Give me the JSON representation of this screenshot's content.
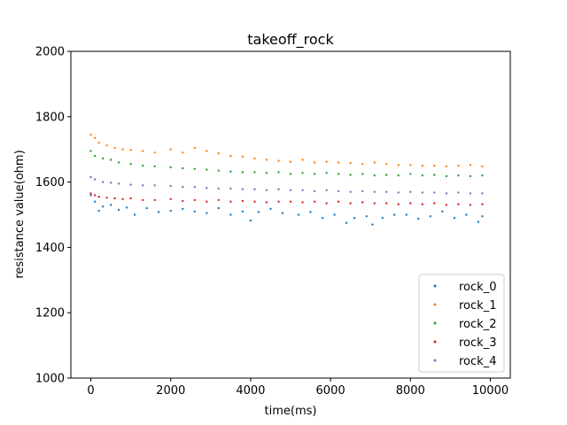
{
  "chart_data": {
    "type": "scatter",
    "title": "takeoff_rock",
    "xlabel": "time(ms)",
    "ylabel": "resistance value(ohm)",
    "xlim": [
      -500,
      10500
    ],
    "ylim": [
      1000,
      2000
    ],
    "xticks": [
      "0",
      "2000",
      "4000",
      "6000",
      "8000",
      "10000"
    ],
    "yticks": [
      "1000",
      "1200",
      "1400",
      "1600",
      "1800",
      "2000"
    ],
    "grid": false,
    "legend_position": "lower-right",
    "series": [
      {
        "name": "rock_0",
        "color": "#1f77b4",
        "points": [
          [
            0,
            1560
          ],
          [
            100,
            1540
          ],
          [
            200,
            1512
          ],
          [
            300,
            1525
          ],
          [
            500,
            1530
          ],
          [
            700,
            1515
          ],
          [
            900,
            1522
          ],
          [
            1100,
            1500
          ],
          [
            1400,
            1520
          ],
          [
            1700,
            1508
          ],
          [
            2000,
            1512
          ],
          [
            2300,
            1518
          ],
          [
            2600,
            1510
          ],
          [
            2900,
            1505
          ],
          [
            3200,
            1520
          ],
          [
            3500,
            1500
          ],
          [
            3800,
            1510
          ],
          [
            4000,
            1482
          ],
          [
            4200,
            1508
          ],
          [
            4500,
            1518
          ],
          [
            4800,
            1505
          ],
          [
            5200,
            1500
          ],
          [
            5500,
            1508
          ],
          [
            5800,
            1490
          ],
          [
            6100,
            1500
          ],
          [
            6400,
            1475
          ],
          [
            6600,
            1490
          ],
          [
            6900,
            1495
          ],
          [
            7050,
            1470
          ],
          [
            7300,
            1490
          ],
          [
            7600,
            1500
          ],
          [
            7900,
            1500
          ],
          [
            8200,
            1488
          ],
          [
            8500,
            1495
          ],
          [
            8800,
            1510
          ],
          [
            9100,
            1490
          ],
          [
            9400,
            1500
          ],
          [
            9700,
            1478
          ],
          [
            9800,
            1495
          ]
        ]
      },
      {
        "name": "rock_1",
        "color": "#ff7f0e",
        "points": [
          [
            0,
            1745
          ],
          [
            100,
            1735
          ],
          [
            200,
            1720
          ],
          [
            400,
            1712
          ],
          [
            600,
            1705
          ],
          [
            800,
            1700
          ],
          [
            1000,
            1698
          ],
          [
            1300,
            1695
          ],
          [
            1600,
            1690
          ],
          [
            2000,
            1700
          ],
          [
            2300,
            1690
          ],
          [
            2600,
            1705
          ],
          [
            2900,
            1695
          ],
          [
            3200,
            1688
          ],
          [
            3500,
            1680
          ],
          [
            3800,
            1678
          ],
          [
            4100,
            1672
          ],
          [
            4400,
            1668
          ],
          [
            4700,
            1665
          ],
          [
            5000,
            1662
          ],
          [
            5300,
            1668
          ],
          [
            5600,
            1660
          ],
          [
            5900,
            1662
          ],
          [
            6200,
            1660
          ],
          [
            6500,
            1658
          ],
          [
            6800,
            1655
          ],
          [
            7100,
            1660
          ],
          [
            7400,
            1655
          ],
          [
            7700,
            1652
          ],
          [
            8000,
            1652
          ],
          [
            8300,
            1650
          ],
          [
            8600,
            1650
          ],
          [
            8900,
            1648
          ],
          [
            9200,
            1650
          ],
          [
            9500,
            1652
          ],
          [
            9800,
            1648
          ]
        ]
      },
      {
        "name": "rock_2",
        "color": "#2ca02c",
        "points": [
          [
            0,
            1695
          ],
          [
            100,
            1680
          ],
          [
            300,
            1672
          ],
          [
            500,
            1668
          ],
          [
            700,
            1660
          ],
          [
            1000,
            1655
          ],
          [
            1300,
            1650
          ],
          [
            1600,
            1648
          ],
          [
            2000,
            1645
          ],
          [
            2300,
            1642
          ],
          [
            2600,
            1640
          ],
          [
            2900,
            1638
          ],
          [
            3200,
            1635
          ],
          [
            3500,
            1632
          ],
          [
            3800,
            1630
          ],
          [
            4100,
            1630
          ],
          [
            4400,
            1628
          ],
          [
            4700,
            1630
          ],
          [
            5000,
            1625
          ],
          [
            5300,
            1628
          ],
          [
            5600,
            1625
          ],
          [
            5900,
            1628
          ],
          [
            6200,
            1625
          ],
          [
            6500,
            1622
          ],
          [
            6800,
            1625
          ],
          [
            7100,
            1620
          ],
          [
            7400,
            1622
          ],
          [
            7700,
            1620
          ],
          [
            8000,
            1625
          ],
          [
            8300,
            1620
          ],
          [
            8600,
            1622
          ],
          [
            8900,
            1618
          ],
          [
            9200,
            1620
          ],
          [
            9500,
            1618
          ],
          [
            9800,
            1620
          ]
        ]
      },
      {
        "name": "rock_3",
        "color": "#d62728",
        "points": [
          [
            0,
            1565
          ],
          [
            100,
            1560
          ],
          [
            200,
            1555
          ],
          [
            400,
            1552
          ],
          [
            600,
            1550
          ],
          [
            800,
            1548
          ],
          [
            1000,
            1550
          ],
          [
            1300,
            1545
          ],
          [
            1600,
            1545
          ],
          [
            2000,
            1548
          ],
          [
            2300,
            1542
          ],
          [
            2600,
            1545
          ],
          [
            2900,
            1540
          ],
          [
            3200,
            1545
          ],
          [
            3500,
            1540
          ],
          [
            3800,
            1542
          ],
          [
            4100,
            1540
          ],
          [
            4400,
            1538
          ],
          [
            4700,
            1540
          ],
          [
            5000,
            1540
          ],
          [
            5300,
            1538
          ],
          [
            5600,
            1540
          ],
          [
            5900,
            1535
          ],
          [
            6200,
            1540
          ],
          [
            6500,
            1535
          ],
          [
            6800,
            1538
          ],
          [
            7100,
            1535
          ],
          [
            7400,
            1535
          ],
          [
            7700,
            1532
          ],
          [
            8000,
            1535
          ],
          [
            8300,
            1532
          ],
          [
            8600,
            1535
          ],
          [
            8900,
            1530
          ],
          [
            9200,
            1532
          ],
          [
            9500,
            1530
          ],
          [
            9800,
            1532
          ]
        ]
      },
      {
        "name": "rock_4",
        "color": "#9467bd",
        "points": [
          [
            0,
            1615
          ],
          [
            100,
            1608
          ],
          [
            300,
            1600
          ],
          [
            500,
            1598
          ],
          [
            700,
            1595
          ],
          [
            1000,
            1592
          ],
          [
            1300,
            1590
          ],
          [
            1600,
            1590
          ],
          [
            2000,
            1588
          ],
          [
            2300,
            1585
          ],
          [
            2600,
            1585
          ],
          [
            2900,
            1582
          ],
          [
            3200,
            1580
          ],
          [
            3500,
            1580
          ],
          [
            3800,
            1578
          ],
          [
            4100,
            1578
          ],
          [
            4400,
            1575
          ],
          [
            4700,
            1578
          ],
          [
            5000,
            1575
          ],
          [
            5300,
            1575
          ],
          [
            5600,
            1572
          ],
          [
            5900,
            1575
          ],
          [
            6200,
            1572
          ],
          [
            6500,
            1570
          ],
          [
            6800,
            1572
          ],
          [
            7100,
            1570
          ],
          [
            7400,
            1570
          ],
          [
            7700,
            1568
          ],
          [
            8000,
            1570
          ],
          [
            8300,
            1568
          ],
          [
            8600,
            1568
          ],
          [
            8900,
            1565
          ],
          [
            9200,
            1568
          ],
          [
            9500,
            1565
          ],
          [
            9800,
            1565
          ]
        ]
      }
    ]
  }
}
